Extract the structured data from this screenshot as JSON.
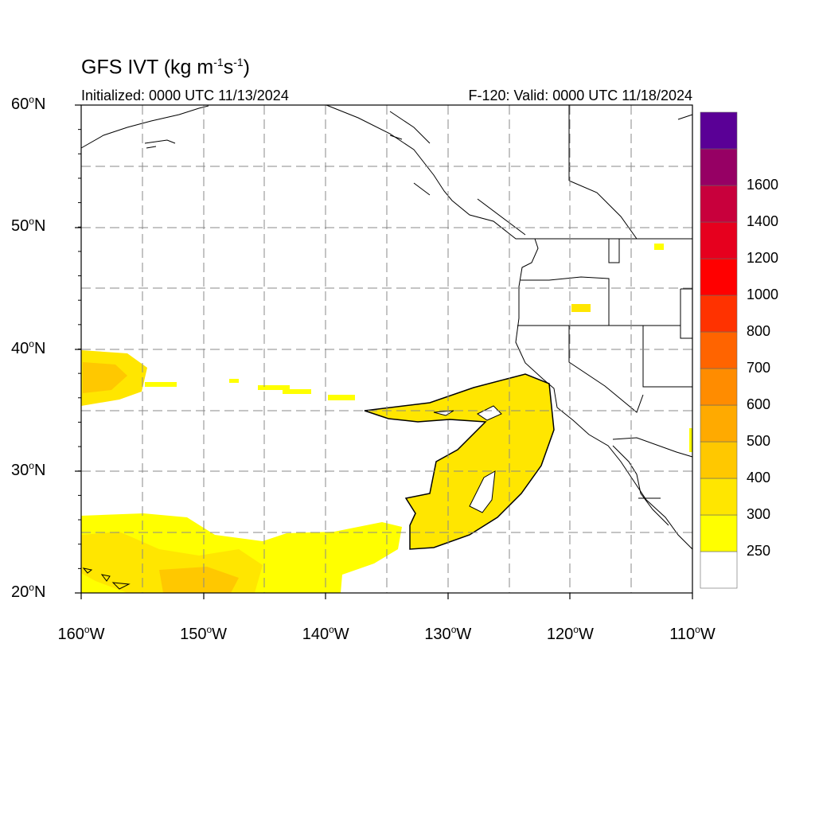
{
  "header": {
    "title_main": "GFS IVT (kg m",
    "title_exp1": "-1",
    "title_mid": "s",
    "title_exp2": "-1",
    "title_end": ")",
    "initialized": "Initialized: 0000 UTC 11/13/2024",
    "valid": "F-120: Valid: 0000 UTC 11/18/2024"
  },
  "axes": {
    "lat_labels": [
      {
        "text": "60",
        "hemi": "N"
      },
      {
        "text": "50",
        "hemi": "N"
      },
      {
        "text": "40",
        "hemi": "N"
      },
      {
        "text": "30",
        "hemi": "N"
      },
      {
        "text": "20",
        "hemi": "N"
      }
    ],
    "lon_labels": [
      {
        "text": "160",
        "hemi": "W"
      },
      {
        "text": "150",
        "hemi": "W"
      },
      {
        "text": "140",
        "hemi": "W"
      },
      {
        "text": "130",
        "hemi": "W"
      },
      {
        "text": "120",
        "hemi": "W"
      },
      {
        "text": "110",
        "hemi": "W"
      }
    ],
    "deg_symbol": "o",
    "lon_range": [
      -160,
      -110
    ],
    "lat_range": [
      20,
      60
    ]
  },
  "colorbar": {
    "colors": [
      "#ffffff",
      "#ffff00",
      "#ffe600",
      "#ffc800",
      "#ffaa00",
      "#ff8c00",
      "#ff6400",
      "#ff3200",
      "#ff0000",
      "#e6001e",
      "#c8003c",
      "#960064",
      "#5a0096"
    ],
    "labels": [
      "250",
      "300",
      "400",
      "500",
      "600",
      "700",
      "800",
      "1000",
      "1200",
      "1400",
      "1600"
    ]
  }
}
